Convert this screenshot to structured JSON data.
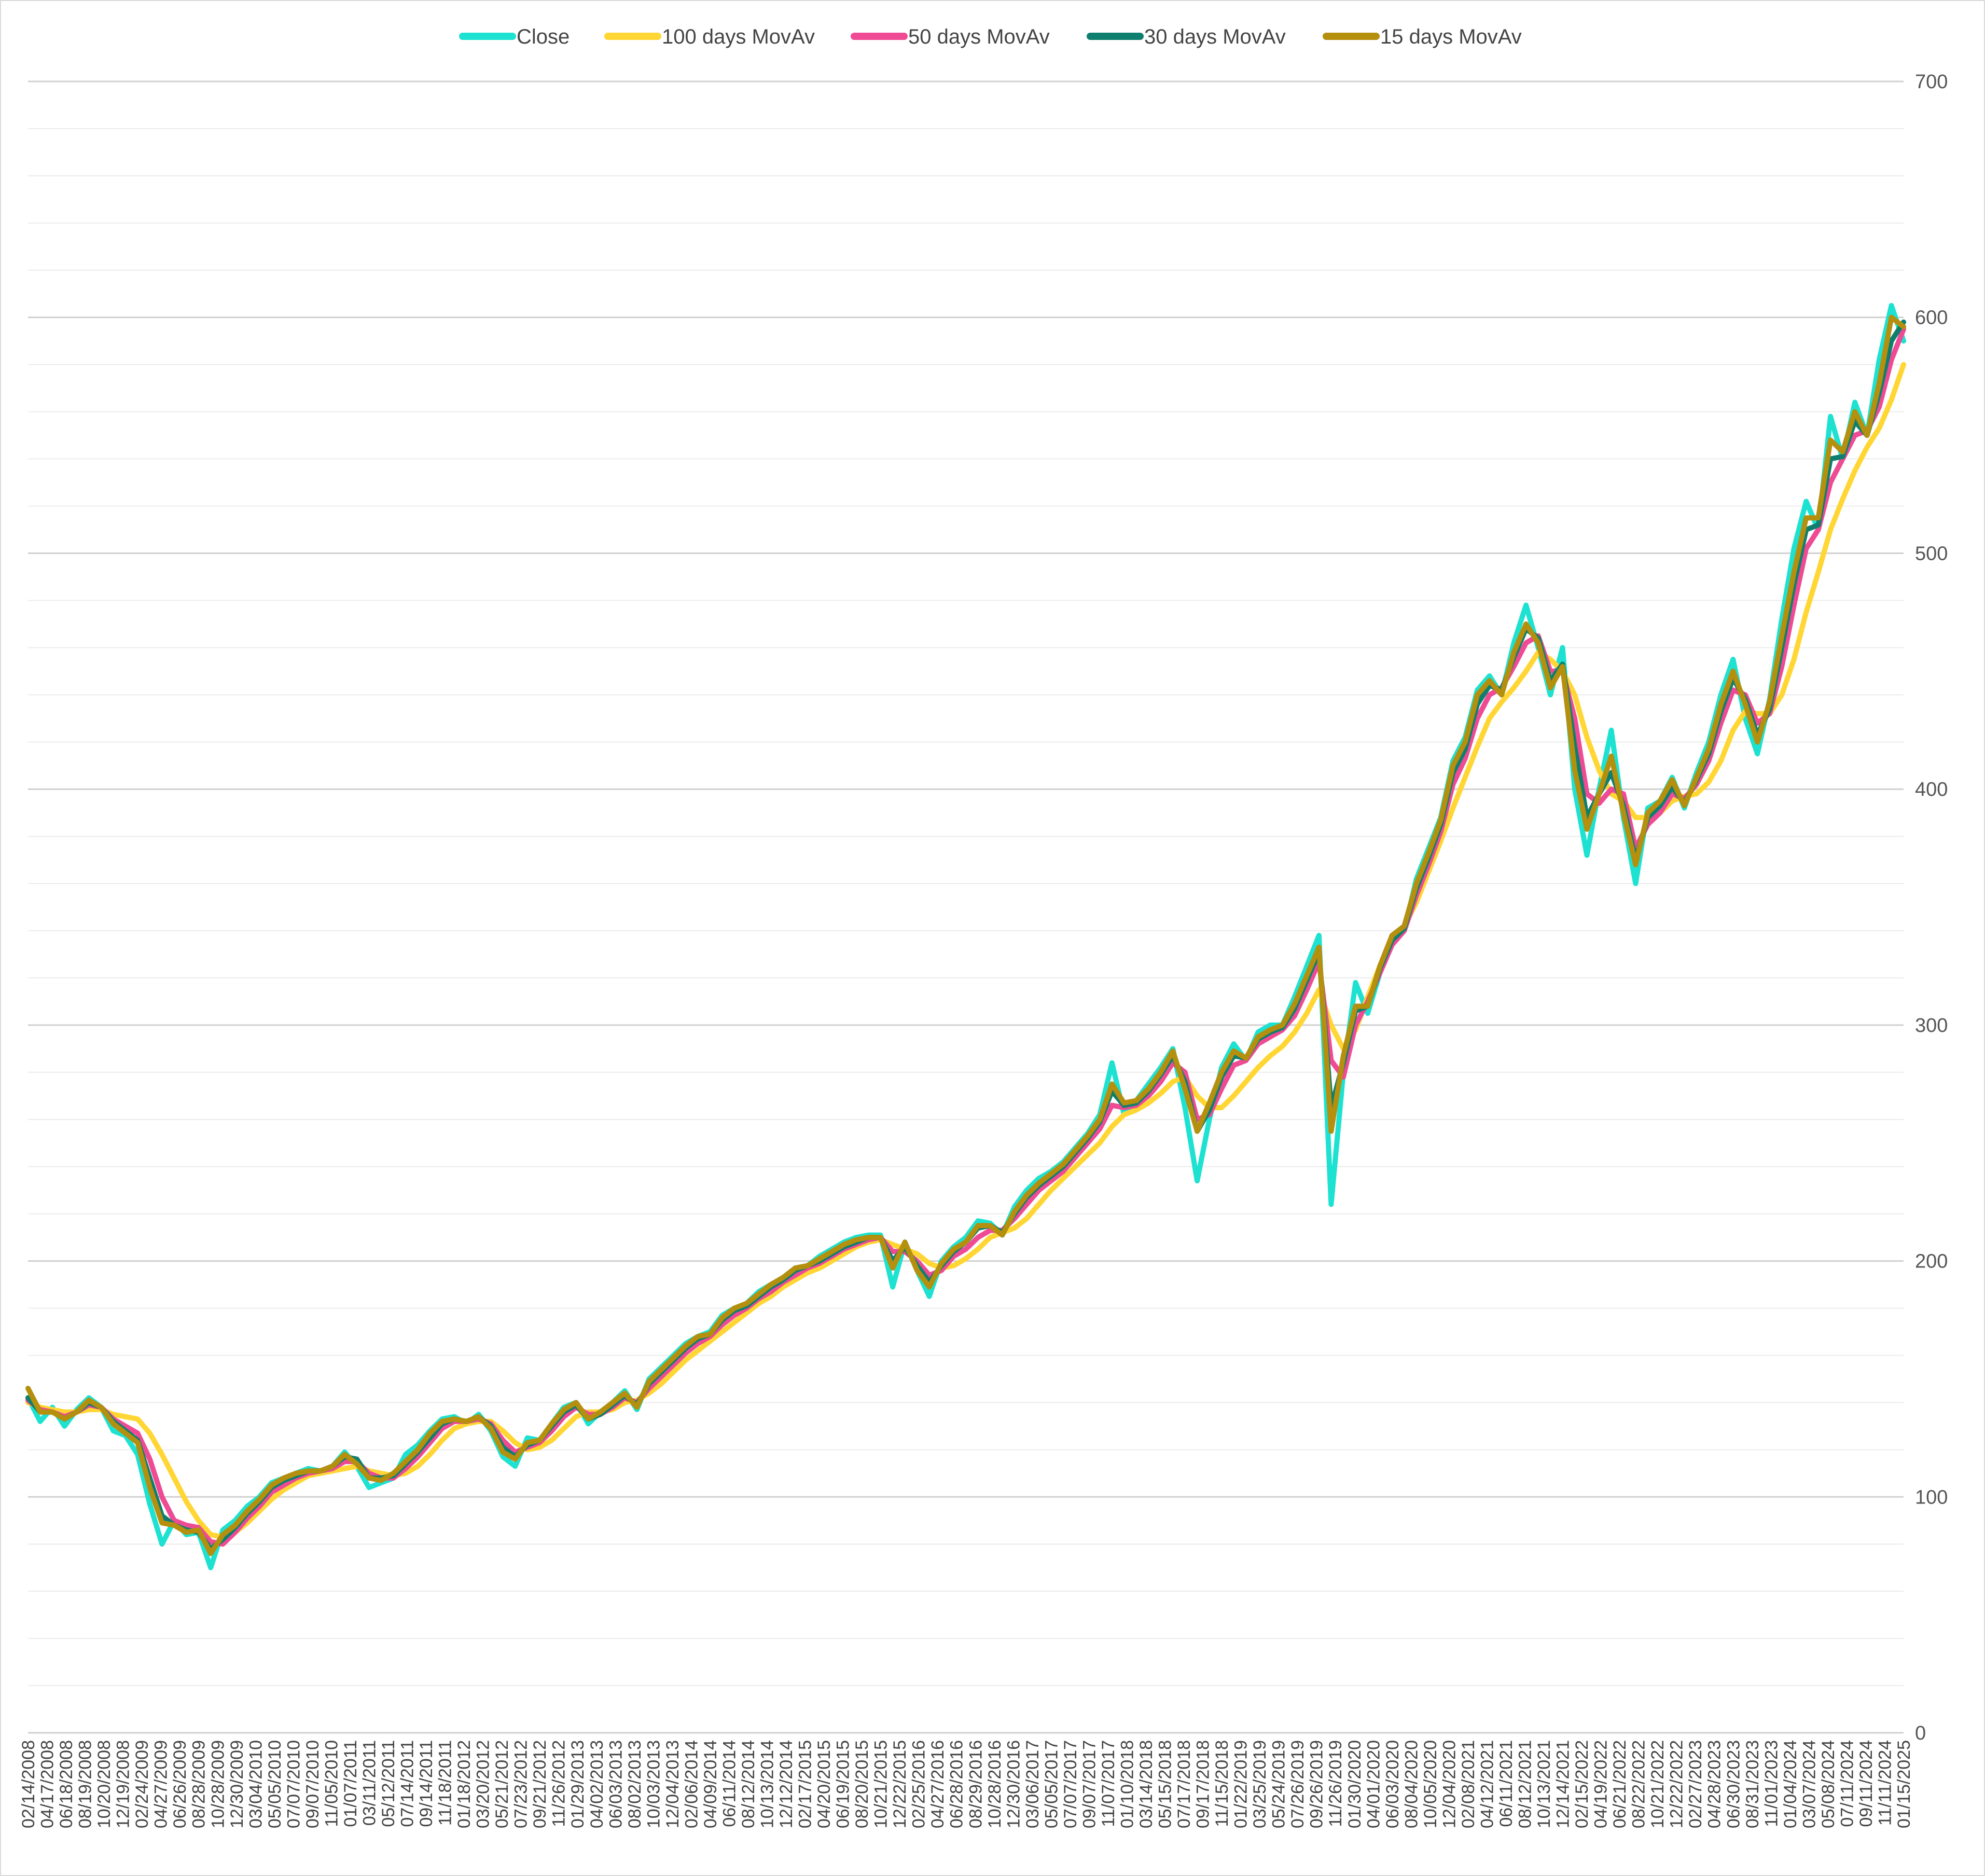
{
  "chart_data": {
    "type": "line",
    "title": "",
    "xlabel": "",
    "ylabel": "",
    "ylim": [
      0,
      700
    ],
    "yticks": [
      0,
      100,
      200,
      300,
      400,
      500,
      600,
      700
    ],
    "grid": true,
    "legend_position": "top",
    "x_tick_labels": [
      "02/14/2008",
      "04/17/2008",
      "06/18/2008",
      "08/19/2008",
      "10/20/2008",
      "12/19/2008",
      "02/24/2009",
      "04/27/2009",
      "06/26/2009",
      "08/28/2009",
      "10/28/2009",
      "12/30/2009",
      "03/04/2010",
      "05/05/2010",
      "07/07/2010",
      "09/07/2010",
      "11/05/2010",
      "01/07/2011",
      "03/11/2011",
      "05/12/2011",
      "07/14/2011",
      "09/14/2011",
      "11/18/2011",
      "01/18/2012",
      "03/20/2012",
      "05/21/2012",
      "07/23/2012",
      "09/21/2012",
      "11/26/2012",
      "01/29/2013",
      "04/02/2013",
      "06/03/2013",
      "08/02/2013",
      "10/03/2013",
      "12/04/2013",
      "02/06/2014",
      "04/09/2014",
      "06/11/2014",
      "08/12/2014",
      "10/13/2014",
      "12/12/2014",
      "02/17/2015",
      "04/20/2015",
      "06/19/2015",
      "08/20/2015",
      "10/21/2015",
      "12/22/2015",
      "02/25/2016",
      "04/27/2016",
      "06/28/2016",
      "08/29/2016",
      "10/28/2016",
      "12/30/2016",
      "03/06/2017",
      "05/05/2017",
      "07/07/2017",
      "09/07/2017",
      "11/07/2017",
      "01/10/2018",
      "03/14/2018",
      "05/15/2018",
      "07/17/2018",
      "09/17/2018",
      "11/15/2018",
      "01/22/2019",
      "03/25/2019",
      "05/24/2019",
      "07/26/2019",
      "09/26/2019",
      "11/26/2019",
      "01/30/2020",
      "04/01/2020",
      "06/03/2020",
      "08/04/2020",
      "10/05/2020",
      "12/04/2020",
      "02/08/2021",
      "04/12/2021",
      "06/11/2021",
      "08/12/2021",
      "10/13/2021",
      "12/14/2021",
      "02/15/2022",
      "04/19/2022",
      "06/21/2022",
      "08/22/2022",
      "10/21/2022",
      "12/22/2022",
      "02/27/2023",
      "04/28/2023",
      "06/30/2023",
      "08/31/2023",
      "11/01/2023",
      "01/04/2024",
      "03/07/2024",
      "05/08/2024",
      "07/11/2024",
      "09/11/2024",
      "11/11/2024",
      "01/15/2025"
    ],
    "series": [
      {
        "name": "Close",
        "color": "#1de1d1",
        "stroke_width": 10,
        "values": [
          142,
          132,
          138,
          130,
          137,
          142,
          138,
          128,
          126,
          118,
          97,
          80,
          90,
          84,
          85,
          70,
          86,
          90,
          96,
          100,
          106,
          108,
          110,
          112,
          111,
          113,
          119,
          113,
          104,
          106,
          108,
          118,
          122,
          128,
          133,
          134,
          131,
          135,
          128,
          117,
          113,
          125,
          124,
          131,
          138,
          140,
          131,
          136,
          140,
          145,
          137,
          150,
          155,
          160,
          165,
          168,
          170,
          177,
          180,
          182,
          187,
          190,
          193,
          197,
          198,
          202,
          205,
          208,
          210,
          211,
          211,
          189,
          208,
          196,
          185,
          200,
          206,
          210,
          217,
          216,
          211,
          223,
          230,
          235,
          238,
          242,
          248,
          254,
          262,
          284,
          262,
          268,
          275,
          282,
          290,
          265,
          234,
          260,
          282,
          292,
          285,
          297,
          300,
          300,
          312,
          325,
          338,
          224,
          280,
          318,
          305,
          322,
          338,
          340,
          362,
          375,
          388,
          412,
          422,
          442,
          448,
          440,
          462,
          478,
          460,
          440,
          460,
          400,
          372,
          400,
          425,
          388,
          360,
          392,
          395,
          405,
          392,
          407,
          420,
          440,
          455,
          430,
          415,
          438,
          472,
          502,
          522,
          510,
          558,
          540,
          564,
          550,
          582,
          605,
          590
        ]
      },
      {
        "name": "100 days MovAv",
        "color": "#ffd633",
        "stroke_width": 10,
        "values": [
          140,
          138,
          137,
          136,
          136,
          137,
          137,
          135,
          134,
          133,
          127,
          118,
          108,
          98,
          90,
          84,
          83,
          85,
          89,
          94,
          99,
          103,
          106,
          109,
          110,
          111,
          112,
          113,
          111,
          110,
          109,
          110,
          113,
          118,
          124,
          129,
          131,
          132,
          132,
          128,
          123,
          120,
          121,
          124,
          129,
          134,
          136,
          136,
          137,
          140,
          141,
          144,
          148,
          153,
          158,
          162,
          166,
          170,
          174,
          178,
          182,
          185,
          189,
          192,
          195,
          197,
          200,
          203,
          206,
          208,
          209,
          207,
          205,
          203,
          199,
          197,
          198,
          201,
          205,
          210,
          212,
          214,
          218,
          224,
          230,
          235,
          240,
          245,
          250,
          257,
          262,
          264,
          267,
          271,
          276,
          278,
          270,
          265,
          265,
          270,
          276,
          282,
          287,
          291,
          297,
          305,
          315,
          300,
          290,
          298,
          312,
          325,
          335,
          342,
          352,
          365,
          378,
          392,
          405,
          418,
          430,
          437,
          443,
          450,
          458,
          455,
          450,
          440,
          422,
          408,
          398,
          395,
          388,
          388,
          390,
          395,
          397,
          398,
          403,
          412,
          425,
          433,
          432,
          432,
          440,
          455,
          475,
          492,
          510,
          523,
          535,
          545,
          553,
          565,
          580
        ]
      },
      {
        "name": "50 days MovAv",
        "color": "#ef4a94",
        "stroke_width": 10,
        "values": [
          141,
          137,
          136,
          134,
          136,
          139,
          138,
          133,
          130,
          127,
          116,
          100,
          90,
          88,
          87,
          81,
          80,
          85,
          91,
          96,
          102,
          105,
          108,
          110,
          111,
          112,
          115,
          115,
          110,
          108,
          108,
          112,
          117,
          123,
          129,
          132,
          132,
          133,
          131,
          124,
          119,
          121,
          123,
          128,
          134,
          138,
          135,
          135,
          138,
          142,
          140,
          146,
          151,
          156,
          161,
          165,
          168,
          173,
          177,
          180,
          184,
          187,
          191,
          194,
          197,
          199,
          202,
          205,
          207,
          209,
          210,
          204,
          204,
          200,
          194,
          196,
          202,
          205,
          210,
          213,
          213,
          218,
          224,
          230,
          234,
          238,
          244,
          250,
          256,
          266,
          265,
          266,
          270,
          276,
          284,
          280,
          260,
          262,
          273,
          283,
          285,
          292,
          295,
          298,
          304,
          315,
          327,
          285,
          278,
          300,
          310,
          322,
          334,
          340,
          355,
          368,
          382,
          402,
          413,
          430,
          440,
          443,
          452,
          462,
          465,
          450,
          450,
          430,
          398,
          394,
          400,
          398,
          375,
          385,
          390,
          398,
          396,
          402,
          412,
          428,
          442,
          440,
          428,
          432,
          452,
          478,
          502,
          510,
          530,
          540,
          550,
          552,
          562,
          582,
          595
        ]
      },
      {
        "name": "30 days MovAv",
        "color": "#0e7f6e",
        "stroke_width": 10,
        "values": [
          142,
          136,
          136,
          133,
          136,
          140,
          138,
          132,
          128,
          124,
          108,
          92,
          88,
          86,
          85,
          78,
          82,
          87,
          93,
          98,
          104,
          107,
          109,
          111,
          111,
          113,
          117,
          116,
          108,
          108,
          109,
          114,
          119,
          125,
          131,
          133,
          132,
          134,
          130,
          121,
          117,
          122,
          124,
          130,
          136,
          139,
          133,
          135,
          139,
          143,
          139,
          148,
          153,
          158,
          163,
          167,
          169,
          175,
          179,
          181,
          185,
          189,
          192,
          196,
          198,
          200,
          203,
          206,
          208,
          210,
          210,
          200,
          206,
          198,
          191,
          198,
          204,
          208,
          214,
          215,
          212,
          220,
          227,
          232,
          236,
          240,
          246,
          252,
          259,
          272,
          266,
          267,
          272,
          279,
          287,
          276,
          255,
          264,
          278,
          287,
          286,
          294,
          297,
          299,
          307,
          319,
          331,
          265,
          284,
          306,
          308,
          324,
          336,
          341,
          358,
          371,
          385,
          407,
          417,
          436,
          444,
          442,
          456,
          468,
          464,
          446,
          453,
          418,
          388,
          398,
          407,
          393,
          370,
          388,
          393,
          401,
          394,
          404,
          415,
          433,
          447,
          438,
          423,
          434,
          460,
          487,
          510,
          512,
          540,
          541,
          556,
          550,
          568,
          590,
          598
        ]
      },
      {
        "name": "15 days MovAv",
        "color": "#b58f0e",
        "stroke_width": 10,
        "values": [
          146,
          136,
          136,
          133,
          136,
          141,
          138,
          131,
          127,
          123,
          104,
          89,
          88,
          85,
          86,
          76,
          84,
          88,
          94,
          99,
          105,
          108,
          110,
          111,
          111,
          113,
          118,
          114,
          108,
          107,
          110,
          115,
          120,
          127,
          132,
          133,
          132,
          134,
          129,
          119,
          116,
          123,
          124,
          131,
          137,
          140,
          133,
          136,
          140,
          144,
          138,
          149,
          154,
          159,
          164,
          168,
          169,
          176,
          180,
          182,
          186,
          190,
          193,
          197,
          198,
          201,
          204,
          207,
          209,
          210,
          210,
          197,
          208,
          196,
          189,
          199,
          205,
          208,
          215,
          215,
          211,
          221,
          228,
          233,
          237,
          241,
          247,
          253,
          260,
          275,
          267,
          268,
          273,
          280,
          289,
          273,
          255,
          267,
          280,
          289,
          286,
          295,
          298,
          300,
          309,
          321,
          333,
          255,
          287,
          308,
          308,
          325,
          338,
          342,
          360,
          373,
          387,
          410,
          420,
          440,
          446,
          440,
          458,
          470,
          462,
          443,
          452,
          408,
          383,
          398,
          414,
          390,
          368,
          390,
          395,
          404,
          393,
          405,
          417,
          436,
          450,
          436,
          420,
          437,
          465,
          492,
          515,
          515,
          548,
          543,
          560,
          550,
          572,
          600,
          596
        ]
      }
    ]
  }
}
